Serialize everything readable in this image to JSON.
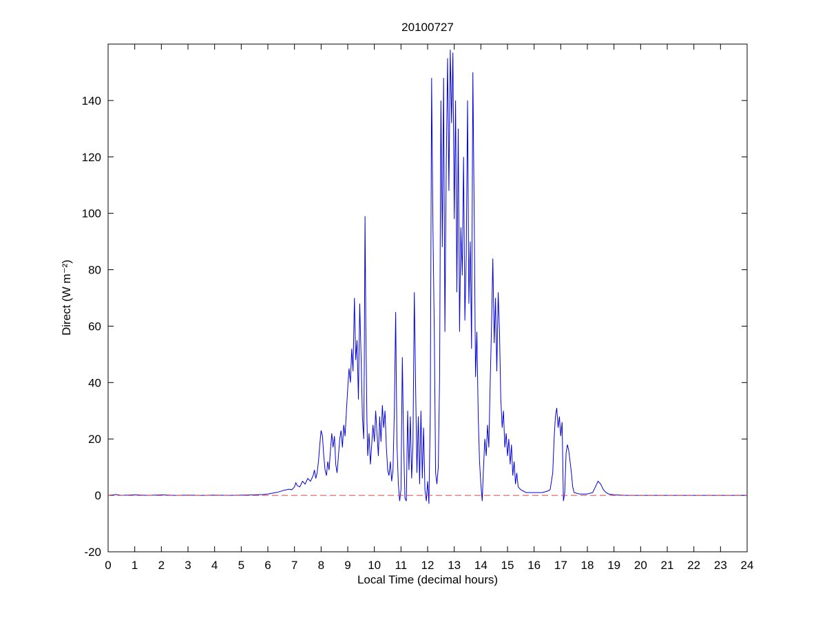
{
  "figure": {
    "background": "#FFFFFF",
    "axis_color": "#000000"
  },
  "chart_data": {
    "type": "line",
    "title": "20100727",
    "xlabel": "Local Time (decimal hours)",
    "ylabel": "Direct (W m⁻²)",
    "xlim": [
      0,
      24
    ],
    "ylim": [
      -20,
      160
    ],
    "xticks": [
      0,
      1,
      2,
      3,
      4,
      5,
      6,
      7,
      8,
      9,
      10,
      11,
      12,
      13,
      14,
      15,
      16,
      17,
      18,
      19,
      20,
      21,
      22,
      23,
      24
    ],
    "yticks": [
      -20,
      0,
      20,
      40,
      60,
      80,
      100,
      120,
      140
    ],
    "grid": false,
    "legend_position": "none",
    "series": [
      {
        "name": "direct-irradiance",
        "color": "#0000DD",
        "style": "solid",
        "points": [
          [
            0,
            0
          ],
          [
            0.3,
            0.3
          ],
          [
            0.5,
            0
          ],
          [
            1,
            0.2
          ],
          [
            1.5,
            0
          ],
          [
            2,
            0.2
          ],
          [
            2.5,
            0
          ],
          [
            3,
            0.1
          ],
          [
            3.5,
            0
          ],
          [
            4,
            0.1
          ],
          [
            4.5,
            0
          ],
          [
            5,
            0.1
          ],
          [
            5.5,
            0.2
          ],
          [
            5.8,
            0.3
          ],
          [
            6,
            0.5
          ],
          [
            6.2,
            0.8
          ],
          [
            6.4,
            1.2
          ],
          [
            6.6,
            1.8
          ],
          [
            6.8,
            2.2
          ],
          [
            6.9,
            2
          ],
          [
            7,
            3
          ],
          [
            7.05,
            4.5
          ],
          [
            7.1,
            3.5
          ],
          [
            7.2,
            3
          ],
          [
            7.3,
            5
          ],
          [
            7.4,
            4
          ],
          [
            7.5,
            6
          ],
          [
            7.6,
            5
          ],
          [
            7.7,
            7
          ],
          [
            7.75,
            9
          ],
          [
            7.8,
            6
          ],
          [
            7.85,
            8
          ],
          [
            7.9,
            12
          ],
          [
            7.95,
            18
          ],
          [
            8,
            23
          ],
          [
            8.05,
            21
          ],
          [
            8.1,
            14
          ],
          [
            8.15,
            9
          ],
          [
            8.2,
            7
          ],
          [
            8.25,
            12
          ],
          [
            8.3,
            9
          ],
          [
            8.35,
            16
          ],
          [
            8.4,
            22
          ],
          [
            8.45,
            17
          ],
          [
            8.5,
            21
          ],
          [
            8.55,
            11
          ],
          [
            8.6,
            8
          ],
          [
            8.65,
            14
          ],
          [
            8.7,
            20
          ],
          [
            8.75,
            23
          ],
          [
            8.8,
            17
          ],
          [
            8.85,
            25
          ],
          [
            8.9,
            21
          ],
          [
            8.95,
            30
          ],
          [
            9,
            38
          ],
          [
            9.05,
            45
          ],
          [
            9.1,
            40
          ],
          [
            9.15,
            52
          ],
          [
            9.2,
            44
          ],
          [
            9.25,
            70
          ],
          [
            9.3,
            48
          ],
          [
            9.35,
            55
          ],
          [
            9.4,
            34
          ],
          [
            9.45,
            68
          ],
          [
            9.5,
            50
          ],
          [
            9.55,
            28
          ],
          [
            9.6,
            20
          ],
          [
            9.62,
            45
          ],
          [
            9.65,
            99
          ],
          [
            9.68,
            60
          ],
          [
            9.72,
            28
          ],
          [
            9.75,
            14
          ],
          [
            9.8,
            22
          ],
          [
            9.85,
            11
          ],
          [
            9.9,
            18
          ],
          [
            9.95,
            25
          ],
          [
            10,
            19
          ],
          [
            10.05,
            30
          ],
          [
            10.1,
            22
          ],
          [
            10.15,
            14
          ],
          [
            10.2,
            28
          ],
          [
            10.25,
            19
          ],
          [
            10.3,
            32
          ],
          [
            10.35,
            24
          ],
          [
            10.4,
            30
          ],
          [
            10.45,
            17
          ],
          [
            10.5,
            9
          ],
          [
            10.55,
            7
          ],
          [
            10.6,
            12
          ],
          [
            10.65,
            5
          ],
          [
            10.7,
            9
          ],
          [
            10.75,
            30
          ],
          [
            10.8,
            65
          ],
          [
            10.85,
            18
          ],
          [
            10.9,
            4
          ],
          [
            10.95,
            -2
          ],
          [
            11,
            2
          ],
          [
            11.05,
            49
          ],
          [
            11.1,
            18
          ],
          [
            11.15,
            -1
          ],
          [
            11.2,
            -2
          ],
          [
            11.25,
            30
          ],
          [
            11.3,
            9
          ],
          [
            11.35,
            28
          ],
          [
            11.4,
            6
          ],
          [
            11.45,
            18
          ],
          [
            11.5,
            72
          ],
          [
            11.55,
            38
          ],
          [
            11.6,
            8
          ],
          [
            11.65,
            28
          ],
          [
            11.7,
            4
          ],
          [
            11.75,
            30
          ],
          [
            11.8,
            6
          ],
          [
            11.85,
            24
          ],
          [
            11.9,
            2
          ],
          [
            11.95,
            -2
          ],
          [
            12,
            5
          ],
          [
            12.05,
            -3
          ],
          [
            12.1,
            30
          ],
          [
            12.15,
            148
          ],
          [
            12.2,
            96
          ],
          [
            12.25,
            58
          ],
          [
            12.3,
            8
          ],
          [
            12.35,
            4
          ],
          [
            12.4,
            10
          ],
          [
            12.45,
            42
          ],
          [
            12.5,
            140
          ],
          [
            12.55,
            88
          ],
          [
            12.6,
            148
          ],
          [
            12.65,
            58
          ],
          [
            12.7,
            118
          ],
          [
            12.75,
            155
          ],
          [
            12.8,
            108
          ],
          [
            12.85,
            158
          ],
          [
            12.9,
            132
          ],
          [
            12.95,
            157
          ],
          [
            13,
            98
          ],
          [
            13.05,
            140
          ],
          [
            13.1,
            72
          ],
          [
            13.15,
            130
          ],
          [
            13.2,
            58
          ],
          [
            13.25,
            95
          ],
          [
            13.3,
            78
          ],
          [
            13.35,
            120
          ],
          [
            13.4,
            62
          ],
          [
            13.45,
            85
          ],
          [
            13.5,
            140
          ],
          [
            13.55,
            68
          ],
          [
            13.6,
            90
          ],
          [
            13.65,
            52
          ],
          [
            13.7,
            150
          ],
          [
            13.75,
            98
          ],
          [
            13.8,
            42
          ],
          [
            13.85,
            58
          ],
          [
            13.9,
            28
          ],
          [
            13.95,
            12
          ],
          [
            14,
            4
          ],
          [
            14.05,
            -2
          ],
          [
            14.1,
            10
          ],
          [
            14.15,
            20
          ],
          [
            14.2,
            14
          ],
          [
            14.25,
            25
          ],
          [
            14.3,
            17
          ],
          [
            14.35,
            40
          ],
          [
            14.4,
            60
          ],
          [
            14.45,
            84
          ],
          [
            14.5,
            54
          ],
          [
            14.55,
            70
          ],
          [
            14.6,
            44
          ],
          [
            14.65,
            72
          ],
          [
            14.7,
            58
          ],
          [
            14.75,
            34
          ],
          [
            14.8,
            24
          ],
          [
            14.85,
            30
          ],
          [
            14.9,
            17
          ],
          [
            14.95,
            22
          ],
          [
            15,
            14
          ],
          [
            15.05,
            20
          ],
          [
            15.1,
            11
          ],
          [
            15.15,
            18
          ],
          [
            15.2,
            7
          ],
          [
            15.25,
            12
          ],
          [
            15.3,
            4
          ],
          [
            15.35,
            8
          ],
          [
            15.4,
            3
          ],
          [
            15.5,
            2
          ],
          [
            15.6,
            1.5
          ],
          [
            15.7,
            1
          ],
          [
            15.9,
            1
          ],
          [
            16.1,
            1
          ],
          [
            16.3,
            1
          ],
          [
            16.5,
            1.5
          ],
          [
            16.6,
            2
          ],
          [
            16.7,
            8
          ],
          [
            16.75,
            20
          ],
          [
            16.8,
            28
          ],
          [
            16.85,
            31
          ],
          [
            16.9,
            24
          ],
          [
            16.95,
            28
          ],
          [
            17,
            21
          ],
          [
            17.05,
            26
          ],
          [
            17.1,
            -2
          ],
          [
            17.15,
            1
          ],
          [
            17.2,
            15
          ],
          [
            17.25,
            18
          ],
          [
            17.3,
            16
          ],
          [
            17.35,
            12
          ],
          [
            17.4,
            8
          ],
          [
            17.45,
            3
          ],
          [
            17.5,
            1
          ],
          [
            17.7,
            0.5
          ],
          [
            18,
            0.5
          ],
          [
            18.2,
            1
          ],
          [
            18.3,
            3
          ],
          [
            18.4,
            5
          ],
          [
            18.5,
            4
          ],
          [
            18.6,
            2
          ],
          [
            18.7,
            1
          ],
          [
            18.8,
            0.5
          ],
          [
            19,
            0.2
          ],
          [
            19.5,
            0
          ],
          [
            20,
            0
          ],
          [
            20.5,
            0
          ],
          [
            21,
            0
          ],
          [
            21.5,
            0
          ],
          [
            22,
            0
          ],
          [
            22.5,
            0
          ],
          [
            23,
            0
          ],
          [
            23.5,
            0
          ],
          [
            24,
            0
          ]
        ]
      },
      {
        "name": "zero-reference",
        "color": "#E04040",
        "style": "dashed",
        "points": [
          [
            0,
            0
          ],
          [
            24,
            0
          ]
        ]
      }
    ]
  }
}
